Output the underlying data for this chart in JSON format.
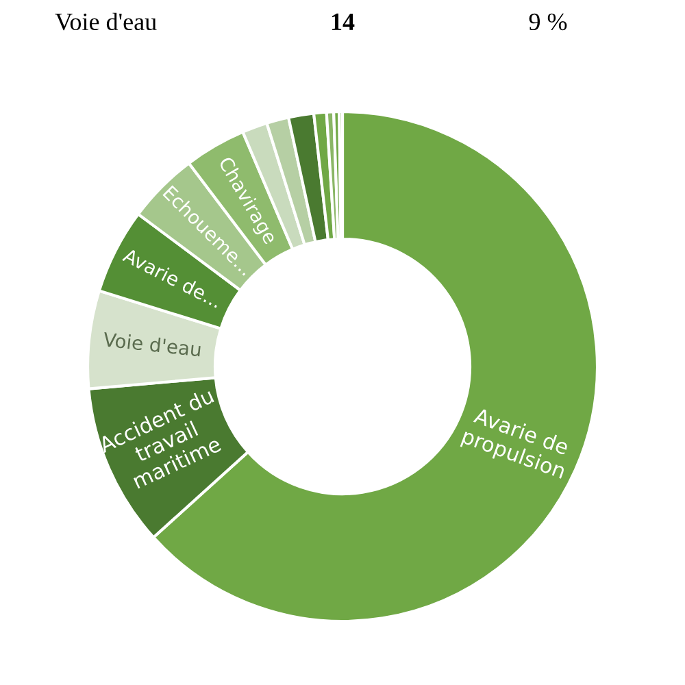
{
  "chart_data": {
    "type": "donut",
    "categories": [
      "Avarie de propulsion",
      "Accident du travail maritime",
      "Voie d'eau",
      "Avarie de...",
      "Echoueme...",
      "Chavirage",
      null,
      null,
      null,
      null,
      null,
      null,
      null
    ],
    "values": [
      63.3,
      10.3,
      6.2,
      5.4,
      4.5,
      3.9,
      1.6,
      1.4,
      1.6,
      0.8,
      0.45,
      0.35,
      0.2
    ],
    "colors": [
      "#70a845",
      "#4a7a30",
      "#d6e2cc",
      "#548f35",
      "#a5c78c",
      "#8fbb6d",
      "#c9dbbd",
      "#b6cfa4",
      "#4a7a30",
      "#70a845",
      "#8ab666",
      "#70a845",
      "#8ab666"
    ],
    "annotations": [
      "Voie d'eau",
      "14",
      "9 %"
    ],
    "legend": false
  }
}
